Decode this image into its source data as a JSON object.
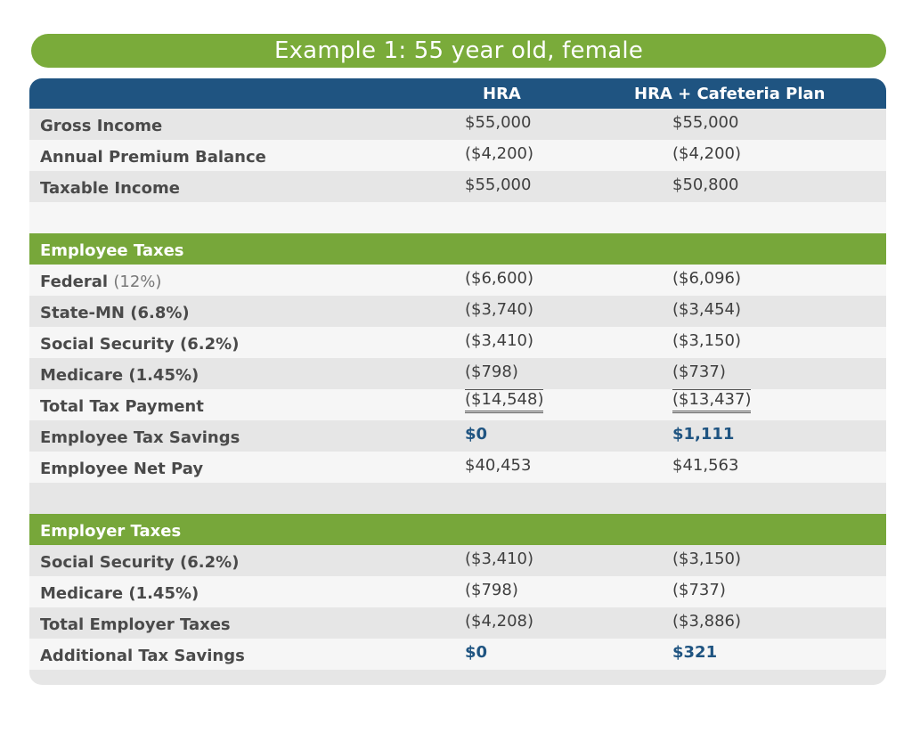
{
  "title": "Example 1:   55 year old, female",
  "columns": [
    "HRA",
    "HRA + Cafeteria Plan"
  ],
  "summary_rows": [
    {
      "label": "Gross Income",
      "hra": "$55,000",
      "caf": "$55,000"
    },
    {
      "label": "Annual Premium Balance",
      "hra": "($4,200)",
      "caf": "($4,200)"
    },
    {
      "label": "Taxable Income",
      "hra": "$55,000",
      "caf": "$50,800"
    }
  ],
  "employee_section": {
    "title": "Employee Taxes",
    "rows": [
      {
        "label": "Federal",
        "pct": "(12%)",
        "hra": "($6,600)",
        "caf": "($6,096)"
      },
      {
        "label": "State-MN (6.8%)",
        "hra": "($3,740)",
        "caf": "($3,454)"
      },
      {
        "label": "Social Security (6.2%)",
        "hra": "($3,410)",
        "caf": "($3,150)"
      },
      {
        "label": "Medicare (1.45%)",
        "hra": "($798)",
        "caf": "($737)"
      },
      {
        "label": "Total Tax Payment",
        "hra": "($14,548)",
        "caf": "($13,437)"
      },
      {
        "label": "Employee Tax Savings",
        "hra": "$0",
        "caf": "$1,111"
      },
      {
        "label": "Employee Net Pay",
        "hra": "$40,453",
        "caf": "$41,563"
      }
    ]
  },
  "employer_section": {
    "title": "Employer Taxes",
    "rows": [
      {
        "label": "Social Security (6.2%)",
        "hra": "($3,410)",
        "caf": "($3,150)"
      },
      {
        "label": "Medicare (1.45%)",
        "hra": "($798)",
        "caf": "($737)"
      },
      {
        "label": "Total Employer Taxes",
        "hra": "($4,208)",
        "caf": "($3,886)"
      },
      {
        "label": "Additional Tax Savings",
        "hra": "$0",
        "caf": "$321"
      }
    ]
  },
  "colors": {
    "green": "#7aab3a",
    "navy": "#1f5481",
    "row_gray": "#e6e6e6",
    "row_light": "#f6f6f6"
  }
}
